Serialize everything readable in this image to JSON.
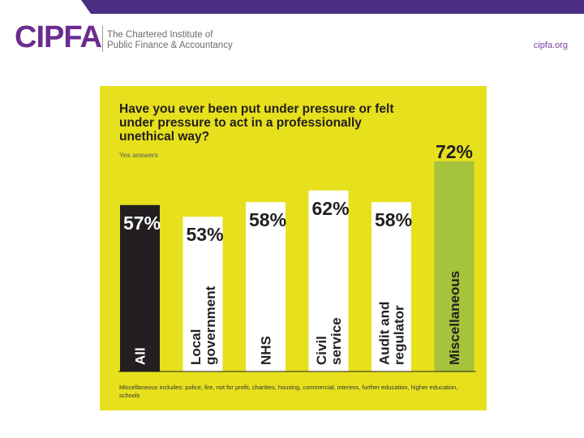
{
  "header": {
    "logo_text": "CIPFA",
    "tagline_line1": "The Chartered Institute of",
    "tagline_line2": "Public Finance & Accountancy",
    "site_url": "cipfa.org"
  },
  "colors": {
    "brand_purple": "#4b2e83",
    "panel_yellow": "#e6e01d",
    "bar_dark": "#231f20",
    "bar_white": "#ffffff",
    "bar_green": "#a5c33b"
  },
  "chart_data": {
    "type": "bar",
    "title": "Have you ever been put under pressure or felt under pressure to act in a professionally unethical way?",
    "title_lines": [
      "Have you ever been put under pressure or felt",
      "under pressure to act in a professionally",
      "unethical way?"
    ],
    "subtitle": "Yes answers",
    "ylabel": "",
    "xlabel": "",
    "ylim": [
      0,
      100
    ],
    "bars": [
      {
        "category": "All",
        "label_lines": [
          "All"
        ],
        "value": 57,
        "value_label": "57%",
        "style": "dark"
      },
      {
        "category": "Local government",
        "label_lines": [
          "Local",
          "government"
        ],
        "value": 53,
        "value_label": "53%",
        "style": "white"
      },
      {
        "category": "NHS",
        "label_lines": [
          "NHS"
        ],
        "value": 58,
        "value_label": "58%",
        "style": "white"
      },
      {
        "category": "Civil service",
        "label_lines": [
          "Civil",
          "service"
        ],
        "value": 62,
        "value_label": "62%",
        "style": "white"
      },
      {
        "category": "Audit and regulator",
        "label_lines": [
          "Audit and",
          "regulator"
        ],
        "value": 58,
        "value_label": "58%",
        "style": "white"
      },
      {
        "category": "Miscellaneous",
        "label_lines": [
          "Miscellaneous"
        ],
        "value": 72,
        "value_label": "72%",
        "style": "green"
      }
    ],
    "footnote": "Miscellaneous includes: police, fire, not for profit, charities, housing, commercial, interims, further education, higher education, schools"
  }
}
